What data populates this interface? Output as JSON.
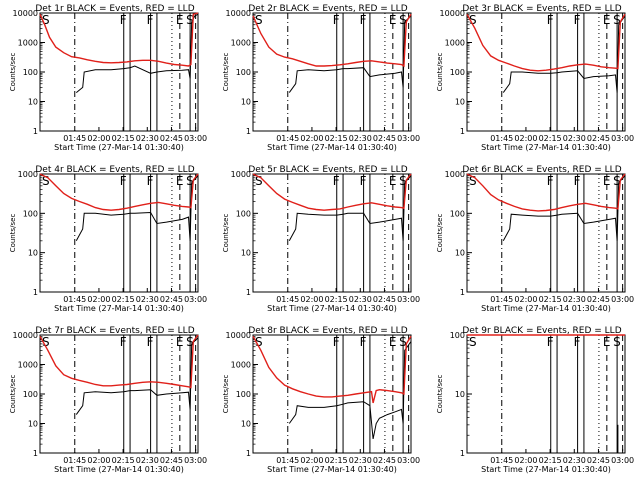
{
  "common": {
    "title_suffix": "BLACK = Events, RED = LLD",
    "xlabel": "Start Time (27-Mar-14 01:30:40)",
    "ylabel": "Counts/sec",
    "x_ticks": [
      "01:45",
      "02:00",
      "02:15",
      "02:30",
      "02:45",
      "03:00"
    ],
    "y_ticks_a": [
      "1",
      "10",
      "100",
      "1000",
      "10000"
    ],
    "y_ticks_b": [
      "1",
      "10",
      "100",
      "1000"
    ],
    "colors": {
      "events": "#000000",
      "lld": "#e0201a"
    },
    "markers": [
      {
        "label": "S",
        "t": 0.0,
        "style": "none"
      },
      {
        "label": "",
        "t": 0.22,
        "style": "dashdot"
      },
      {
        "label": "F",
        "t": 0.53,
        "style": "solid"
      },
      {
        "label": "",
        "t": 0.57,
        "style": "solid"
      },
      {
        "label": "F",
        "t": 0.7,
        "style": "solid"
      },
      {
        "label": "",
        "t": 0.74,
        "style": "solid"
      },
      {
        "label": "",
        "t": 0.835,
        "style": "dotted"
      },
      {
        "label": "E",
        "t": 0.885,
        "style": "dashed"
      },
      {
        "label": "S",
        "t": 0.95,
        "style": "solid"
      },
      {
        "label": "",
        "t": 0.985,
        "style": "dashed"
      }
    ]
  },
  "chart_data": [
    {
      "type": "line",
      "title": "Det 1r",
      "ylog": true,
      "ylim": [
        1,
        10000
      ],
      "yticks": "a",
      "series": [
        {
          "name": "Events",
          "color": "#000000",
          "x": [
            0.0,
            0.05,
            0.1,
            0.15,
            0.2,
            0.22,
            0.23,
            0.27,
            0.28,
            0.35,
            0.45,
            0.53,
            0.57,
            0.6,
            0.7,
            0.74,
            0.8,
            0.9,
            0.94,
            0.95,
            0.96,
            0.98,
            1.0
          ],
          "y": [
            null,
            null,
            null,
            null,
            null,
            null,
            20,
            30,
            100,
            120,
            120,
            130,
            140,
            160,
            90,
            100,
            110,
            115,
            120,
            60,
            5000,
            8000,
            9000
          ]
        },
        {
          "name": "LLD",
          "color": "#e0201a",
          "x": [
            0.0,
            0.03,
            0.06,
            0.1,
            0.15,
            0.2,
            0.25,
            0.3,
            0.35,
            0.4,
            0.45,
            0.5,
            0.55,
            0.6,
            0.65,
            0.7,
            0.75,
            0.8,
            0.85,
            0.9,
            0.94,
            0.955,
            0.97,
            1.0
          ],
          "y": [
            9000,
            4000,
            1500,
            700,
            450,
            330,
            300,
            260,
            230,
            210,
            205,
            210,
            220,
            240,
            250,
            250,
            230,
            200,
            180,
            170,
            160,
            180,
            9000,
            10000
          ]
        }
      ]
    },
    {
      "type": "line",
      "title": "Det 2r",
      "ylog": true,
      "ylim": [
        1,
        10000
      ],
      "yticks": "a",
      "series": [
        {
          "name": "Events",
          "color": "#000000",
          "x": [
            0.22,
            0.23,
            0.27,
            0.28,
            0.35,
            0.45,
            0.53,
            0.57,
            0.6,
            0.7,
            0.74,
            0.8,
            0.9,
            0.94,
            0.95,
            0.96,
            1.0
          ],
          "y": [
            null,
            20,
            40,
            110,
            120,
            110,
            120,
            130,
            130,
            140,
            70,
            80,
            90,
            100,
            30,
            5000,
            8000
          ]
        },
        {
          "name": "LLD",
          "color": "#e0201a",
          "x": [
            0.0,
            0.05,
            0.1,
            0.15,
            0.2,
            0.25,
            0.3,
            0.35,
            0.4,
            0.45,
            0.5,
            0.55,
            0.6,
            0.65,
            0.7,
            0.75,
            0.8,
            0.85,
            0.9,
            0.94,
            0.955,
            0.97,
            1.0
          ],
          "y": [
            8000,
            2000,
            700,
            400,
            320,
            280,
            230,
            190,
            160,
            160,
            165,
            175,
            190,
            210,
            230,
            240,
            220,
            200,
            190,
            180,
            160,
            5000,
            9000
          ]
        }
      ]
    },
    {
      "type": "line",
      "title": "Det 3r",
      "ylog": true,
      "ylim": [
        1,
        10000
      ],
      "yticks": "a",
      "series": [
        {
          "name": "Events",
          "color": "#000000",
          "x": [
            0.22,
            0.23,
            0.27,
            0.28,
            0.35,
            0.45,
            0.53,
            0.57,
            0.6,
            0.7,
            0.74,
            0.8,
            0.9,
            0.94,
            0.95,
            0.96,
            1.0
          ],
          "y": [
            null,
            20,
            40,
            100,
            100,
            90,
            90,
            95,
            100,
            110,
            60,
            70,
            75,
            80,
            20,
            4000,
            8000
          ]
        },
        {
          "name": "LLD",
          "color": "#e0201a",
          "x": [
            0.0,
            0.05,
            0.1,
            0.15,
            0.2,
            0.25,
            0.3,
            0.35,
            0.4,
            0.45,
            0.5,
            0.55,
            0.6,
            0.65,
            0.7,
            0.75,
            0.8,
            0.85,
            0.9,
            0.94,
            0.955,
            0.97,
            1.0
          ],
          "y": [
            9000,
            3000,
            800,
            350,
            250,
            200,
            160,
            130,
            115,
            110,
            115,
            125,
            140,
            160,
            175,
            185,
            170,
            150,
            140,
            135,
            130,
            5000,
            9000
          ]
        }
      ]
    },
    {
      "type": "line",
      "title": "Det 4r",
      "ylog": true,
      "ylim": [
        1,
        1000
      ],
      "yticks": "b",
      "series": [
        {
          "name": "Events",
          "color": "#000000",
          "x": [
            0.22,
            0.23,
            0.27,
            0.28,
            0.35,
            0.45,
            0.53,
            0.57,
            0.6,
            0.7,
            0.74,
            0.8,
            0.9,
            0.94,
            0.95,
            0.96,
            1.0
          ],
          "y": [
            null,
            20,
            40,
            100,
            100,
            90,
            95,
            100,
            100,
            105,
            55,
            60,
            70,
            80,
            20,
            600,
            900
          ]
        },
        {
          "name": "LLD",
          "color": "#e0201a",
          "x": [
            0.0,
            0.05,
            0.1,
            0.15,
            0.2,
            0.25,
            0.3,
            0.35,
            0.4,
            0.45,
            0.5,
            0.55,
            0.6,
            0.65,
            0.7,
            0.75,
            0.8,
            0.85,
            0.9,
            0.94,
            0.955,
            0.97,
            1.0
          ],
          "y": [
            1000,
            800,
            500,
            320,
            240,
            200,
            170,
            140,
            125,
            120,
            125,
            135,
            150,
            165,
            180,
            190,
            175,
            160,
            150,
            145,
            140,
            700,
            1000
          ]
        }
      ]
    },
    {
      "type": "line",
      "title": "Det 5r",
      "ylog": true,
      "ylim": [
        1,
        1000
      ],
      "yticks": "b",
      "series": [
        {
          "name": "Events",
          "color": "#000000",
          "x": [
            0.22,
            0.23,
            0.27,
            0.28,
            0.35,
            0.45,
            0.53,
            0.57,
            0.6,
            0.7,
            0.74,
            0.8,
            0.9,
            0.94,
            0.95,
            0.96,
            1.0
          ],
          "y": [
            null,
            20,
            40,
            100,
            95,
            90,
            90,
            95,
            100,
            100,
            55,
            60,
            70,
            75,
            20,
            600,
            900
          ]
        },
        {
          "name": "LLD",
          "color": "#e0201a",
          "x": [
            0.0,
            0.05,
            0.1,
            0.15,
            0.2,
            0.25,
            0.3,
            0.35,
            0.4,
            0.45,
            0.5,
            0.55,
            0.6,
            0.65,
            0.7,
            0.75,
            0.8,
            0.85,
            0.9,
            0.94,
            0.955,
            0.97,
            1.0
          ],
          "y": [
            1000,
            800,
            500,
            320,
            230,
            190,
            160,
            135,
            125,
            120,
            125,
            130,
            145,
            160,
            175,
            185,
            170,
            155,
            145,
            140,
            135,
            700,
            1000
          ]
        }
      ]
    },
    {
      "type": "line",
      "title": "Det 6r",
      "ylog": true,
      "ylim": [
        1,
        1000
      ],
      "yticks": "b",
      "series": [
        {
          "name": "Events",
          "color": "#000000",
          "x": [
            0.22,
            0.23,
            0.27,
            0.28,
            0.35,
            0.45,
            0.53,
            0.57,
            0.6,
            0.7,
            0.74,
            0.8,
            0.9,
            0.94,
            0.95,
            0.96,
            1.0
          ],
          "y": [
            null,
            20,
            40,
            95,
            90,
            85,
            85,
            90,
            95,
            100,
            55,
            60,
            70,
            75,
            20,
            600,
            900
          ]
        },
        {
          "name": "LLD",
          "color": "#e0201a",
          "x": [
            0.0,
            0.05,
            0.1,
            0.15,
            0.2,
            0.25,
            0.3,
            0.35,
            0.4,
            0.45,
            0.5,
            0.55,
            0.6,
            0.65,
            0.7,
            0.75,
            0.8,
            0.85,
            0.9,
            0.94,
            0.955,
            0.97,
            1.0
          ],
          "y": [
            1000,
            800,
            500,
            300,
            220,
            180,
            150,
            130,
            120,
            115,
            118,
            125,
            140,
            155,
            170,
            180,
            165,
            150,
            140,
            135,
            130,
            700,
            1000
          ]
        }
      ]
    },
    {
      "type": "line",
      "title": "Det 7r",
      "ylog": true,
      "ylim": [
        1,
        10000
      ],
      "yticks": "a",
      "series": [
        {
          "name": "Events",
          "color": "#000000",
          "x": [
            0.22,
            0.23,
            0.27,
            0.28,
            0.35,
            0.45,
            0.53,
            0.57,
            0.6,
            0.7,
            0.74,
            0.8,
            0.9,
            0.94,
            0.95,
            0.96,
            1.0
          ],
          "y": [
            null,
            20,
            40,
            110,
            120,
            110,
            120,
            130,
            130,
            140,
            90,
            100,
            110,
            115,
            30,
            5000,
            8000
          ]
        },
        {
          "name": "LLD",
          "color": "#e0201a",
          "x": [
            0.0,
            0.05,
            0.1,
            0.15,
            0.2,
            0.25,
            0.3,
            0.35,
            0.4,
            0.45,
            0.5,
            0.55,
            0.6,
            0.65,
            0.7,
            0.75,
            0.8,
            0.85,
            0.9,
            0.94,
            0.955,
            0.97,
            1.0
          ],
          "y": [
            9000,
            3000,
            900,
            450,
            340,
            290,
            250,
            210,
            190,
            190,
            200,
            210,
            230,
            250,
            260,
            250,
            230,
            210,
            190,
            175,
            165,
            6000,
            10000
          ]
        }
      ]
    },
    {
      "type": "line",
      "title": "Det 8r",
      "ylog": true,
      "ylim": [
        1,
        10000
      ],
      "yticks": "a",
      "series": [
        {
          "name": "Events",
          "color": "#000000",
          "x": [
            0.22,
            0.23,
            0.27,
            0.28,
            0.35,
            0.45,
            0.53,
            0.57,
            0.6,
            0.7,
            0.74,
            0.76,
            0.78,
            0.8,
            0.85,
            0.9,
            0.94,
            0.95,
            0.96,
            1.0
          ],
          "y": [
            null,
            10,
            20,
            40,
            35,
            35,
            40,
            45,
            50,
            55,
            40,
            3,
            10,
            15,
            20,
            25,
            30,
            10,
            3000,
            6000
          ]
        },
        {
          "name": "LLD",
          "color": "#e0201a",
          "x": [
            0.0,
            0.05,
            0.1,
            0.15,
            0.2,
            0.25,
            0.3,
            0.35,
            0.4,
            0.45,
            0.5,
            0.55,
            0.6,
            0.65,
            0.7,
            0.75,
            0.76,
            0.78,
            0.8,
            0.85,
            0.9,
            0.94,
            0.955,
            0.97,
            1.0
          ],
          "y": [
            9000,
            3000,
            800,
            350,
            200,
            150,
            120,
            100,
            85,
            80,
            80,
            85,
            90,
            100,
            110,
            120,
            50,
            130,
            140,
            130,
            120,
            110,
            100,
            5000,
            9000
          ]
        }
      ]
    },
    {
      "type": "line",
      "title": "Det 9r",
      "ylog": true,
      "ylim": [
        1,
        100
      ],
      "yticks": "c",
      "y_ticks_c": [
        "1",
        "10",
        "100"
      ],
      "series": [
        {
          "name": "Events",
          "color": "#000000",
          "x": [
            0.955,
            0.955
          ],
          "y": [
            1,
            3
          ]
        },
        {
          "name": "LLD",
          "color": "#e0201a",
          "x": [
            0.0,
            1.0
          ],
          "y": [
            120,
            120
          ]
        }
      ]
    }
  ]
}
